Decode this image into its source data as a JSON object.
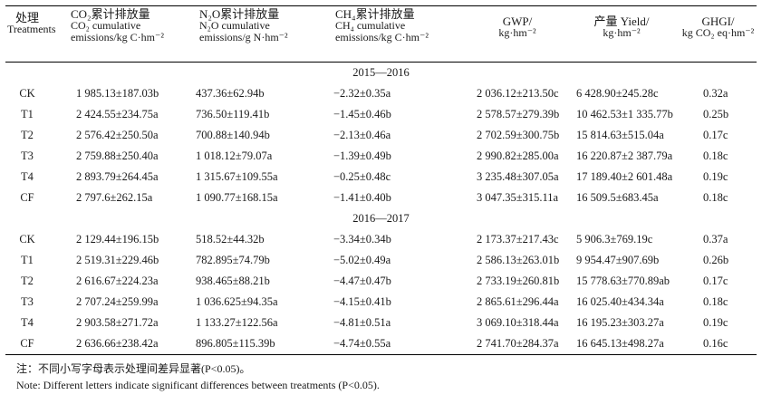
{
  "headers": {
    "treatment": {
      "l1": "处理",
      "l2": "Treatments"
    },
    "co2": {
      "l1": "CO₂累计排放量",
      "l2": "CO₂ cumulative",
      "l3": "emissions/kg C·hm⁻²"
    },
    "n2o": {
      "l1": "N₂O累计排放量",
      "l2": "N₂O cumulative",
      "l3": "emissions/g N·hm⁻²"
    },
    "ch4": {
      "l1": "CH₄累计排放量",
      "l2": "CH₄ cumulative",
      "l3": "emissions/kg C·hm⁻²"
    },
    "gwp": {
      "l1": "GWP/",
      "l2": "kg·hm⁻²"
    },
    "yield": {
      "l1": "产量 Yield/",
      "l2": "kg·hm⁻²"
    },
    "ghgi": {
      "l1": "GHGI/",
      "l2": "kg CO₂ eq·hm⁻²"
    }
  },
  "groups": [
    {
      "year": "2015—2016",
      "rows": [
        {
          "t": "CK",
          "co2": "1 985.13±187.03b",
          "n2o": "437.36±62.94b",
          "ch4": "−2.32±0.35a",
          "gwp": "2 036.12±213.50c",
          "yield": "6 428.90±245.28c",
          "ghgi": "0.32a"
        },
        {
          "t": "T1",
          "co2": "2 424.55±234.75a",
          "n2o": "736.50±119.41b",
          "ch4": "−1.45±0.46b",
          "gwp": "2 578.57±279.39b",
          "yield": "10 462.53±1 335.77b",
          "ghgi": "0.25b"
        },
        {
          "t": "T2",
          "co2": "2 576.42±250.50a",
          "n2o": "700.88±140.94b",
          "ch4": "−2.13±0.46a",
          "gwp": "2 702.59±300.75b",
          "yield": "15 814.63±515.04a",
          "ghgi": "0.17c"
        },
        {
          "t": "T3",
          "co2": "2 759.88±250.40a",
          "n2o": "1 018.12±79.07a",
          "ch4": "−1.39±0.49b",
          "gwp": "2 990.82±285.00a",
          "yield": "16 220.87±2 387.79a",
          "ghgi": "0.18c"
        },
        {
          "t": "T4",
          "co2": "2 893.79±264.45a",
          "n2o": "1 315.67±109.55a",
          "ch4": "−0.25±0.48c",
          "gwp": "3 235.48±307.05a",
          "yield": "17 189.40±2 601.48a",
          "ghgi": "0.19c"
        },
        {
          "t": "CF",
          "co2": "2 797.6±262.15a",
          "n2o": "1 090.77±168.15a",
          "ch4": "−1.41±0.40b",
          "gwp": "3 047.35±315.11a",
          "yield": "16 509.5±683.45a",
          "ghgi": "0.18c"
        }
      ]
    },
    {
      "year": "2016—2017",
      "rows": [
        {
          "t": "CK",
          "co2": "2 129.44±196.15b",
          "n2o": "518.52±44.32b",
          "ch4": "−3.34±0.34b",
          "gwp": "2 173.37±217.43c",
          "yield": "5 906.3±769.19c",
          "ghgi": "0.37a"
        },
        {
          "t": "T1",
          "co2": "2 519.31±229.46b",
          "n2o": "782.895±74.79b",
          "ch4": "−5.02±0.49a",
          "gwp": "2 586.13±263.01b",
          "yield": "9 954.47±907.69b",
          "ghgi": "0.26b"
        },
        {
          "t": "T2",
          "co2": "2 616.67±224.23a",
          "n2o": "938.465±88.21b",
          "ch4": "−4.47±0.47b",
          "gwp": "2 733.19±260.81b",
          "yield": "15 778.63±770.89ab",
          "ghgi": "0.17c"
        },
        {
          "t": "T3",
          "co2": "2 707.24±259.99a",
          "n2o": "1 036.625±94.35a",
          "ch4": "−4.15±0.41b",
          "gwp": "2 865.61±296.44a",
          "yield": "16 025.40±434.34a",
          "ghgi": "0.18c"
        },
        {
          "t": "T4",
          "co2": "2 903.58±271.72a",
          "n2o": "1 133.27±122.56a",
          "ch4": "−4.81±0.51a",
          "gwp": "3 069.10±318.44a",
          "yield": "16 195.23±303.27a",
          "ghgi": "0.19c"
        },
        {
          "t": "CF",
          "co2": "2 636.66±238.42a",
          "n2o": "896.805±115.39b",
          "ch4": "−4.74±0.55a",
          "gwp": "2 741.70±284.37a",
          "yield": "16 645.13±498.27a",
          "ghgi": "0.16c"
        }
      ]
    }
  ],
  "notes": {
    "zh": "注：不同小写字母表示处理间差异显著(P<0.05)。",
    "en": "Note: Different letters indicate significant differences between treatments (P<0.05)."
  }
}
